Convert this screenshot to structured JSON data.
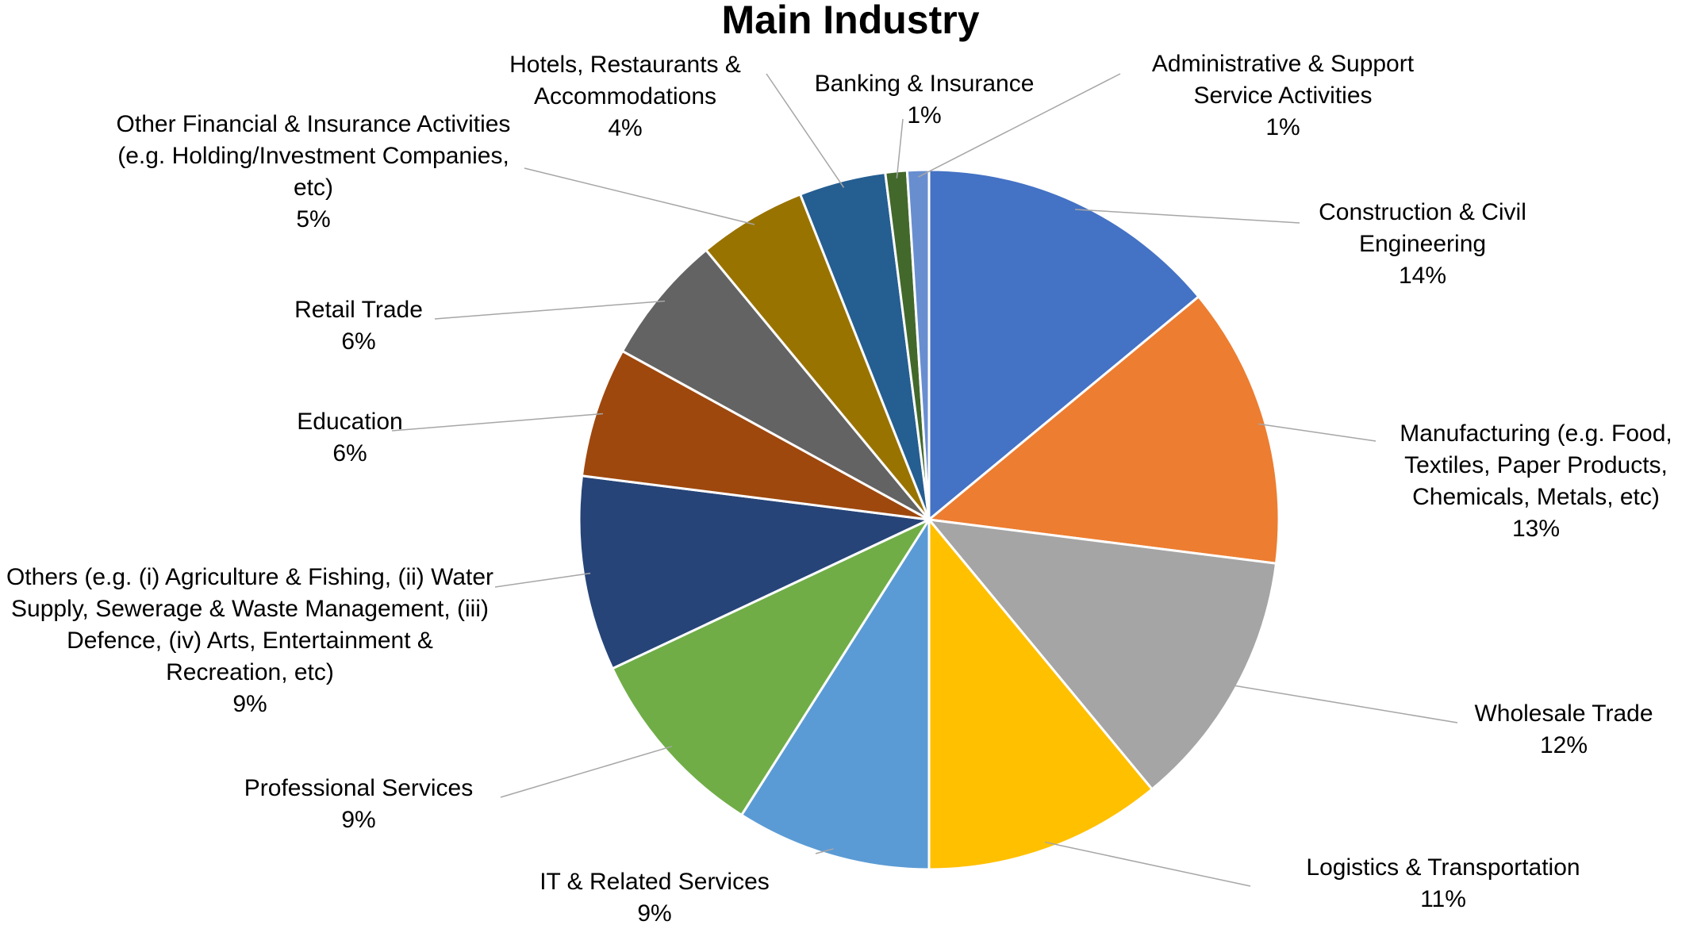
{
  "chart_data": {
    "type": "pie",
    "title": "Main Industry",
    "categories": [
      "Construction & Civil Engineering",
      "Manufacturing (e.g. Food, Textiles, Paper Products, Chemicals, Metals, etc)",
      "Wholesale Trade",
      "Logistics & Transportation",
      "IT & Related Services",
      "Professional Services",
      "Others (e.g. (i) Agriculture & Fishing, (ii) Water Supply, Sewerage & Waste Management, (iii) Defence, (iv) Arts, Entertainment & Recreation, etc)",
      "Education",
      "Retail Trade",
      "Other Financial & Insurance Activities (e.g. Holding/Investment Companies, etc)",
      "Hotels, Restaurants & Accommodations",
      "Banking & Insurance",
      "Administrative & Support Service Activities"
    ],
    "values": [
      14,
      13,
      12,
      11,
      9,
      9,
      9,
      6,
      6,
      5,
      4,
      1,
      1
    ],
    "value_labels": [
      "14%",
      "13%",
      "12%",
      "11%",
      "9%",
      "9%",
      "9%",
      "6%",
      "6%",
      "5%",
      "4%",
      "1%",
      "1%"
    ],
    "colors": [
      "#4472c4",
      "#ed7d31",
      "#a5a5a5",
      "#ffc000",
      "#5b9bd5",
      "#70ad47",
      "#264478",
      "#9e480e",
      "#636363",
      "#997300",
      "#255e91",
      "#43682b",
      "#698ed0"
    ]
  }
}
